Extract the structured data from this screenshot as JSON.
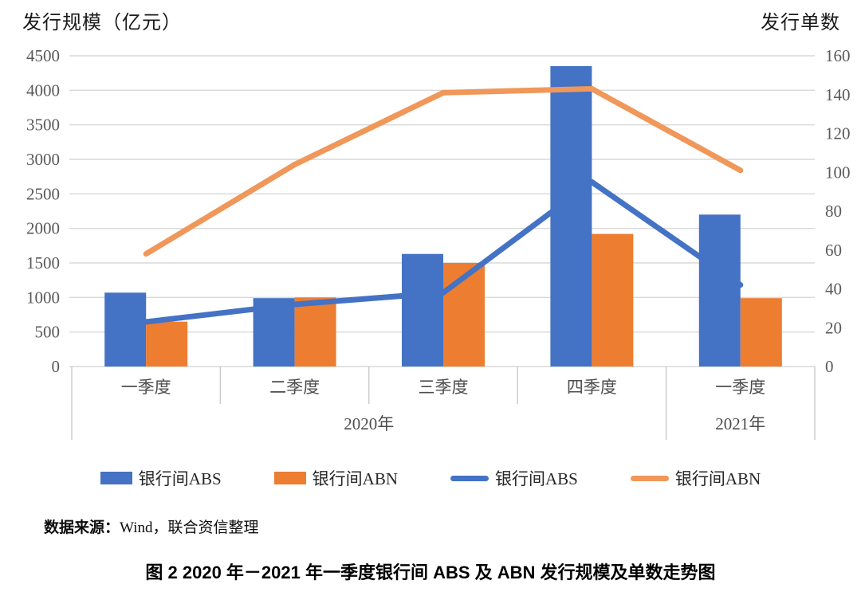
{
  "figure": {
    "caption": "图 2  2020 年－2021 年一季度银行间 ABS 及 ABN 发行规模及单数走势图",
    "source": {
      "prefix": "数据来源：",
      "text": "Wind，联合资信整理"
    }
  },
  "chart_data": {
    "type": "combo: clustered bar (left axis) + line (right axis)",
    "categories": [
      "一季度",
      "二季度",
      "三季度",
      "四季度",
      "一季度"
    ],
    "year_bands": [
      {
        "label": "2020年",
        "span": 4
      },
      {
        "label": "2021年",
        "span": 1
      }
    ],
    "left_axis": {
      "title": "发行规模（亿元）",
      "min": 0,
      "max": 4500,
      "step": 500,
      "ticks": [
        "4500",
        "4000",
        "3500",
        "3000",
        "2500",
        "2000",
        "1500",
        "1000",
        "500",
        "0"
      ]
    },
    "right_axis": {
      "title": "发行单数",
      "min": 0,
      "max": 160,
      "step": 20,
      "ticks": [
        "160",
        "140",
        "120",
        "100",
        "80",
        "60",
        "40",
        "20",
        "0"
      ]
    },
    "bar_series": [
      {
        "name": "银行间ABS",
        "axis": "left",
        "color": "#4472C4",
        "values": [
          1070,
          990,
          1630,
          4350,
          2200
        ]
      },
      {
        "name": "银行间ABN",
        "axis": "left",
        "color": "#ED7D31",
        "values": [
          650,
          1000,
          1500,
          1920,
          990
        ]
      }
    ],
    "line_series": [
      {
        "name": "银行间ABS",
        "axis": "right",
        "color": "#4472C4",
        "values": [
          23,
          32,
          38,
          95,
          42
        ]
      },
      {
        "name": "银行间ABN",
        "axis": "right",
        "color": "#F0975A",
        "values": [
          58,
          104,
          141,
          143,
          101
        ]
      }
    ],
    "grid": true,
    "legend_position": "bottom",
    "gridline_color": "#D9D9D9",
    "tick_label_color": "#595959"
  }
}
